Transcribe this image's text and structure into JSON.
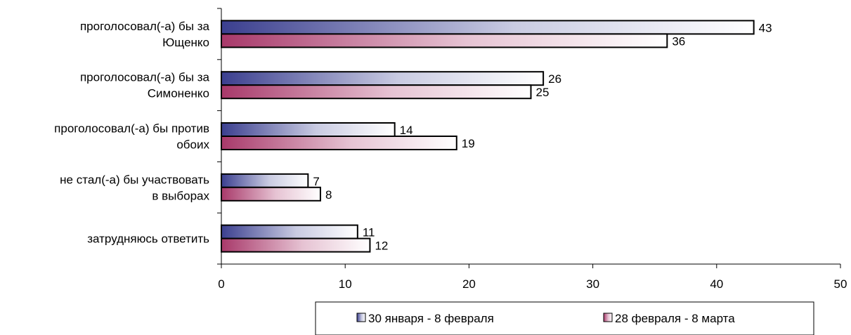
{
  "chart_data": {
    "type": "bar",
    "orientation": "horizontal",
    "categories": [
      [
        "проголосовал(-а) бы за",
        "Ющенко"
      ],
      [
        "проголосовал(-а) бы за",
        "Симоненко"
      ],
      [
        "проголосовал(-а) бы против",
        "обоих"
      ],
      [
        "не стал(-а) бы участвовать",
        "в выборах"
      ],
      [
        "затрудняюсь ответить"
      ]
    ],
    "series": [
      {
        "name": "30 января - 8 февраля",
        "values": [
          43,
          26,
          14,
          7,
          11
        ],
        "labels": [
          "43",
          "26",
          "14",
          "7",
          "11"
        ],
        "color": "#3b3f8f"
      },
      {
        "name": "28 февраля - 8 марта",
        "values": [
          36,
          25,
          19,
          8,
          12
        ],
        "labels": [
          "36",
          "25",
          "19",
          "8",
          "12"
        ],
        "color": "#a8396a"
      }
    ],
    "xlim": [
      0,
      50
    ],
    "xticks": [
      0,
      10,
      20,
      30,
      40,
      50
    ],
    "tick_labels": [
      "0",
      "10",
      "20",
      "30",
      "40",
      "50"
    ],
    "grid": false,
    "legend": "bottom"
  },
  "colors": {
    "series1": "#3b3f8f",
    "series2": "#a8396a",
    "bar_end": "#ffffff",
    "border": "#000000"
  }
}
